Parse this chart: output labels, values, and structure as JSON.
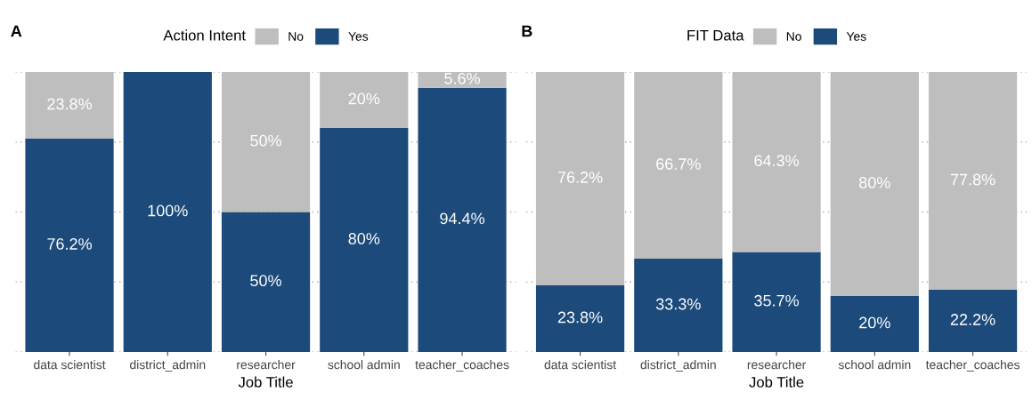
{
  "chart_data": [
    {
      "type": "bar",
      "title": "A",
      "xlabel": "Job Title",
      "legend_title": "Action Intent",
      "legend": "top",
      "stacked": true,
      "grid": "y",
      "tick_labels": "x",
      "categories": [
        "data scientist",
        "district_admin",
        "researcher",
        "school admin",
        "teacher_coaches"
      ],
      "ylim": [
        0,
        100
      ],
      "yticks": [
        {
          "value": 0,
          "label": null
        },
        {
          "value": 25,
          "label": null
        },
        {
          "value": 50,
          "label": null
        },
        {
          "value": 75,
          "label": null
        },
        {
          "value": 100,
          "label": null
        }
      ],
      "series": [
        {
          "name": "Yes",
          "color": "#1c4a7a",
          "values": [
            76.2,
            100,
            50,
            80,
            94.4
          ],
          "value_labels": [
            "76.2%",
            "100%",
            "50%",
            "80%",
            "94.4%"
          ]
        },
        {
          "name": "No",
          "color": "#bebebe",
          "values": [
            23.8,
            0,
            50,
            20,
            5.6
          ],
          "value_labels": [
            "23.8%",
            null,
            "50%",
            "20%",
            "5.6%"
          ]
        }
      ]
    },
    {
      "type": "bar",
      "title": "B",
      "xlabel": "Job Title",
      "legend_title": "FIT Data",
      "legend": "top",
      "stacked": true,
      "grid": "y",
      "tick_labels": "x",
      "categories": [
        "data scientist",
        "district_admin",
        "researcher",
        "school admin",
        "teacher_coaches"
      ],
      "ylim": [
        0,
        100
      ],
      "yticks": [
        {
          "value": 0,
          "label": null
        },
        {
          "value": 25,
          "label": null
        },
        {
          "value": 50,
          "label": null
        },
        {
          "value": 75,
          "label": null
        },
        {
          "value": 100,
          "label": null
        }
      ],
      "series": [
        {
          "name": "Yes",
          "color": "#1c4a7a",
          "values": [
            23.8,
            33.3,
            35.7,
            20,
            22.2
          ],
          "value_labels": [
            "23.8%",
            "33.3%",
            "35.7%",
            "20%",
            "22.2%"
          ]
        },
        {
          "name": "No",
          "color": "#bebebe",
          "values": [
            76.2,
            66.7,
            64.3,
            80,
            77.8
          ],
          "value_labels": [
            "76.2%",
            "66.7%",
            "64.3%",
            "80%",
            "77.8%"
          ]
        }
      ]
    }
  ]
}
